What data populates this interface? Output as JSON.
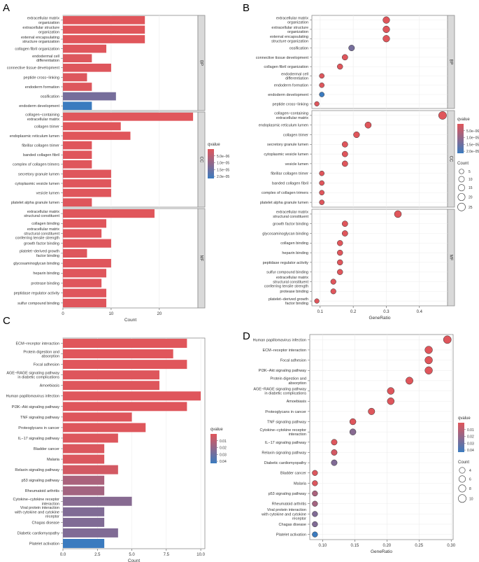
{
  "figure": {
    "panel_labels": [
      "A",
      "B",
      "C",
      "D"
    ]
  },
  "colors": {
    "high_significance": "#e0565b",
    "low_significance": "#3b7bbf",
    "strip_fill": "#d9d9d9",
    "panel_border": "#8c8c8c",
    "grid": "#ececec"
  },
  "chart_data": [
    {
      "id": "A",
      "type": "bar",
      "orientation": "horizontal",
      "xlabel": "Count",
      "xlim": [
        0,
        28
      ],
      "xticks": [
        0,
        10,
        20
      ],
      "facets": [
        {
          "strip": "BP",
          "categories": [
            "extracellular matrix organization",
            "extracellular structure organization",
            "external encapsulating structure organization",
            "collagen fibril organization",
            "endodermal cell differentiation",
            "connective tissue development",
            "peptide cross-linking",
            "endoderm formation",
            "ossification",
            "endoderm development"
          ],
          "labels": [
            "extracellular matrix\norganization",
            "extracellular structure\norganization",
            "external encapsulating\nstructure organization",
            "collagen fibril organization",
            "endodermal cell\ndifferentiation",
            "connective tissue development",
            "peptide cross−linking",
            "endoderm formation",
            "ossification",
            "endoderm development"
          ],
          "values": [
            17,
            17,
            17,
            9,
            6,
            10,
            5,
            6,
            11,
            6
          ],
          "qvalue": [
            5e-07,
            5e-07,
            5e-07,
            6e-07,
            8e-07,
            7e-07,
            8e-07,
            8e-07,
            1.3e-05,
            2e-05
          ]
        },
        {
          "strip": "CC",
          "categories": [
            "collagen-containing extracellular matrix",
            "collagen trimer",
            "endoplasmic reticulum lumen",
            "fibrillar collagen trimer",
            "banded collagen fibril",
            "complex of collagen trimers",
            "secretory granule lumen",
            "cytoplasmic vesicle lumen",
            "vesicle lumen",
            "platelet alpha granule lumen"
          ],
          "labels": [
            "collagen−containing\nextracellular matrix",
            "collagen trimer",
            "endoplasmic reticulum lumen",
            "fibrillar collagen trimer",
            "banded collagen fibril",
            "complex of collagen trimers",
            "secretory granule lumen",
            "cytoplasmic vesicle lumen",
            "vesicle lumen",
            "platelet alpha granule lumen"
          ],
          "values": [
            27,
            12,
            14,
            6,
            6,
            6,
            10,
            10,
            10,
            6
          ],
          "qvalue": [
            5e-07,
            5e-07,
            5e-07,
            6e-07,
            6e-07,
            6e-07,
            6e-07,
            6e-07,
            6e-07,
            7e-07
          ]
        },
        {
          "strip": "MF",
          "categories": [
            "extracellular matrix structural constituent",
            "collagen binding",
            "extracellular matrix structural constituent conferring tensile strength",
            "growth factor binding",
            "platelet-derived growth factor binding",
            "glycosaminoglycan binding",
            "heparin binding",
            "protease binding",
            "peptidase regulator activity",
            "sulfur compound binding"
          ],
          "labels": [
            "extracellular matrix\nstructural constituent",
            "collagen binding",
            "extracellular matrix\nstructural constituent\nconferring tensile strength",
            "growth factor binding",
            "platelet−derived growth\nfactor binding",
            "glycosaminoglycan binding",
            "heparin binding",
            "protease binding",
            "peptidase regulator activity",
            "sulfur compound binding"
          ],
          "values": [
            19,
            9,
            8,
            10,
            5,
            10,
            9,
            8,
            9,
            9
          ],
          "qvalue": [
            5e-07,
            5e-07,
            6e-07,
            6e-07,
            7e-07,
            6e-07,
            6e-07,
            6e-07,
            6e-07,
            6e-07
          ]
        }
      ],
      "legend": {
        "title": "qvalue",
        "ticks": [
          "5.0e−06",
          "1.0e−05",
          "1.5e−05",
          "2.0e−05"
        ],
        "range": [
          5e-07,
          2e-05
        ]
      }
    },
    {
      "id": "B",
      "type": "scatter",
      "xlabel": "GeneRatio",
      "xlim": [
        0.075,
        0.485
      ],
      "xticks": [
        0.1,
        0.2,
        0.3,
        0.4
      ],
      "xticklabels": [
        "0.1",
        "0.2",
        "0.3",
        "0.4"
      ],
      "facets": [
        {
          "strip": "BP",
          "labels": [
            "extracellular matrix\norganization",
            "extracellular structure\norganization",
            "external encapsulating\nstructure organization",
            "ossification",
            "connective tissue development",
            "collagen fibril organization",
            "endodermal cell\ndifferentiation",
            "endoderm formation",
            "endoderm development",
            "peptide cross−linking"
          ],
          "values": [
            0.3,
            0.3,
            0.3,
            0.195,
            0.175,
            0.16,
            0.105,
            0.105,
            0.105,
            0.09
          ],
          "count": [
            17,
            17,
            17,
            11,
            10,
            9,
            6,
            6,
            6,
            5
          ],
          "qvalue": [
            5e-07,
            5e-07,
            5e-07,
            1.3e-05,
            7e-07,
            6e-07,
            8e-07,
            8e-07,
            2e-05,
            8e-07
          ]
        },
        {
          "strip": "CC",
          "labels": [
            "collagen−containing\nextracellular matrix",
            "endoplasmic reticulum lumen",
            "collagen trimer",
            "secretory granule lumen",
            "cytoplasmic vesicle lumen",
            "vesicle lumen",
            "fibrillar collagen trimer",
            "banded collagen fibril",
            "complex of collagen trimers",
            "platelet alpha granule lumen"
          ],
          "values": [
            0.47,
            0.245,
            0.21,
            0.175,
            0.175,
            0.175,
            0.105,
            0.105,
            0.105,
            0.105
          ],
          "count": [
            27,
            14,
            12,
            10,
            10,
            10,
            6,
            6,
            6,
            6
          ],
          "qvalue": [
            5e-07,
            5e-07,
            5e-07,
            6e-07,
            6e-07,
            6e-07,
            6e-07,
            6e-07,
            6e-07,
            7e-07
          ]
        },
        {
          "strip": "MF",
          "labels": [
            "extracellular matrix\nstructural constituent",
            "growth factor binding",
            "glycosaminoglycan binding",
            "collagen binding",
            "heparin binding",
            "peptidase regulator activity",
            "sulfur compound binding",
            "extracellular matrix\nstructural constituent\nconferring tensile strength",
            "protease binding",
            "platelet−derived growth\nfactor binding"
          ],
          "values": [
            0.335,
            0.175,
            0.175,
            0.16,
            0.16,
            0.16,
            0.16,
            0.14,
            0.14,
            0.09
          ],
          "count": [
            19,
            10,
            10,
            9,
            9,
            9,
            9,
            8,
            8,
            5
          ],
          "qvalue": [
            5e-07,
            6e-07,
            6e-07,
            5e-07,
            6e-07,
            6e-07,
            6e-07,
            6e-07,
            6e-07,
            7e-07
          ]
        }
      ],
      "legend": {
        "title": "qvalue",
        "ticks": [
          "5.0e−06",
          "1.0e−05",
          "1.5e−05",
          "2.0e−05"
        ],
        "range": [
          5e-07,
          2e-05
        ],
        "size_title": "Count",
        "size_ticks": [
          5,
          10,
          15,
          20,
          25
        ]
      }
    },
    {
      "id": "C",
      "type": "bar",
      "orientation": "horizontal",
      "xlabel": "Count",
      "xlim": [
        0,
        10.3
      ],
      "xticks": [
        0,
        2.5,
        5,
        7.5,
        10
      ],
      "xticklabels": [
        "0.0",
        "2.5",
        "5.0",
        "7.5",
        "10.0"
      ],
      "labels": [
        "ECM−receptor interaction",
        "Protein digestion and\nabsorption",
        "Focal adhesion",
        "AGE−RAGE signaling pathway\nin diabetic complications",
        "Amoebiasis",
        "Human papillomavirus infection",
        "PI3K−Akt signaling pathway",
        "TNF signaling pathway",
        "Proteoglycans in cancer",
        "IL−17 signaling pathway",
        "Bladder cancer",
        "Malaria",
        "Relaxin signaling pathway",
        "p53 signaling pathway",
        "Rheumatoid arthritis",
        "Cytokine−cytokine receptor\ninteraction",
        "Viral protein interaction\nwith cytokine and cytokine\nreceptor",
        "Chagas disease",
        "Diabetic cardiomyopathy",
        "Platelet activation"
      ],
      "values": [
        9,
        8,
        9,
        7,
        7,
        10,
        9,
        5,
        6,
        4,
        3,
        3,
        4,
        3,
        3,
        5,
        3,
        3,
        4,
        3
      ],
      "qvalue": [
        0.0005,
        0.0005,
        0.0005,
        0.001,
        0.001,
        0.0008,
        0.0008,
        0.001,
        0.0012,
        0.0015,
        0.002,
        0.002,
        0.0045,
        0.016,
        0.018,
        0.026,
        0.028,
        0.028,
        0.028,
        0.048
      ],
      "legend": {
        "title": "qvalue",
        "ticks": [
          "0.01",
          "0.02",
          "0.03",
          "0.04"
        ],
        "range": [
          0.0005,
          0.048
        ]
      }
    },
    {
      "id": "D",
      "type": "scatter",
      "xlabel": "GeneRatio",
      "xlim": [
        0.08,
        0.303
      ],
      "xticks": [
        0.1,
        0.15,
        0.2,
        0.25,
        0.3
      ],
      "xticklabels": [
        "0.10",
        "0.15",
        "0.20",
        "0.25",
        "0.30"
      ],
      "labels": [
        "Human papillomavirus infection",
        "ECM−receptor interaction",
        "Focal adhesion",
        "PI3K−Akt signaling pathway",
        "Protein digestion and\nabsorption",
        "AGE−RAGE signaling pathway\nin diabetic complications",
        "Amoebiasis",
        "Proteoglycans in cancer",
        "TNF signaling pathway",
        "Cytokine−cytokine receptor\ninteraction",
        "IL−17 signaling pathway",
        "Relaxin signaling pathway",
        "Diabetic cardiomyopathy",
        "Bladder cancer",
        "Malaria",
        "p53 signaling pathway",
        "Rheumatoid arthritis",
        "Viral protein interaction\nwith cytokine and cytokine\nreceptor",
        "Chagas disease",
        "Platelet activation"
      ],
      "values": [
        0.294,
        0.265,
        0.265,
        0.265,
        0.235,
        0.206,
        0.206,
        0.176,
        0.147,
        0.147,
        0.118,
        0.118,
        0.118,
        0.088,
        0.088,
        0.088,
        0.088,
        0.088,
        0.088,
        0.088
      ],
      "count": [
        10,
        9,
        9,
        9,
        8,
        7,
        7,
        6,
        5,
        5,
        4,
        4,
        4,
        3,
        3,
        3,
        3,
        3,
        3,
        3
      ],
      "qvalue": [
        0.0008,
        0.0005,
        0.0005,
        0.0008,
        0.0005,
        0.001,
        0.001,
        0.0012,
        0.001,
        0.026,
        0.0015,
        0.0045,
        0.028,
        0.002,
        0.002,
        0.016,
        0.018,
        0.028,
        0.028,
        0.048
      ],
      "legend": {
        "title": "qvalue",
        "ticks": [
          "0.01",
          "0.02",
          "0.03",
          "0.04"
        ],
        "range": [
          0.0005,
          0.048
        ],
        "size_title": "Count",
        "size_ticks": [
          4,
          6,
          8,
          10
        ]
      }
    }
  ]
}
